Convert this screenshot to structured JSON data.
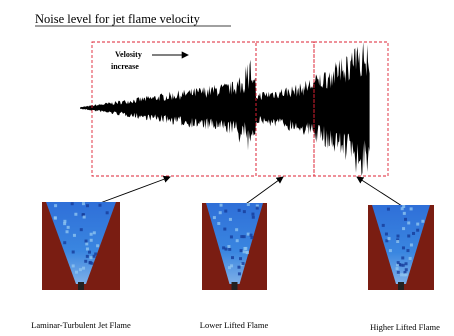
{
  "title": "Noise level for jet flame velocity",
  "annotation": {
    "lines": [
      "Velosity",
      "increase"
    ]
  },
  "flames": [
    {
      "label": "Laminar-Turbulent Jet Flame"
    },
    {
      "label": "Lower Lifted Flame"
    },
    {
      "label": "Higher Lifted Flame"
    }
  ]
}
